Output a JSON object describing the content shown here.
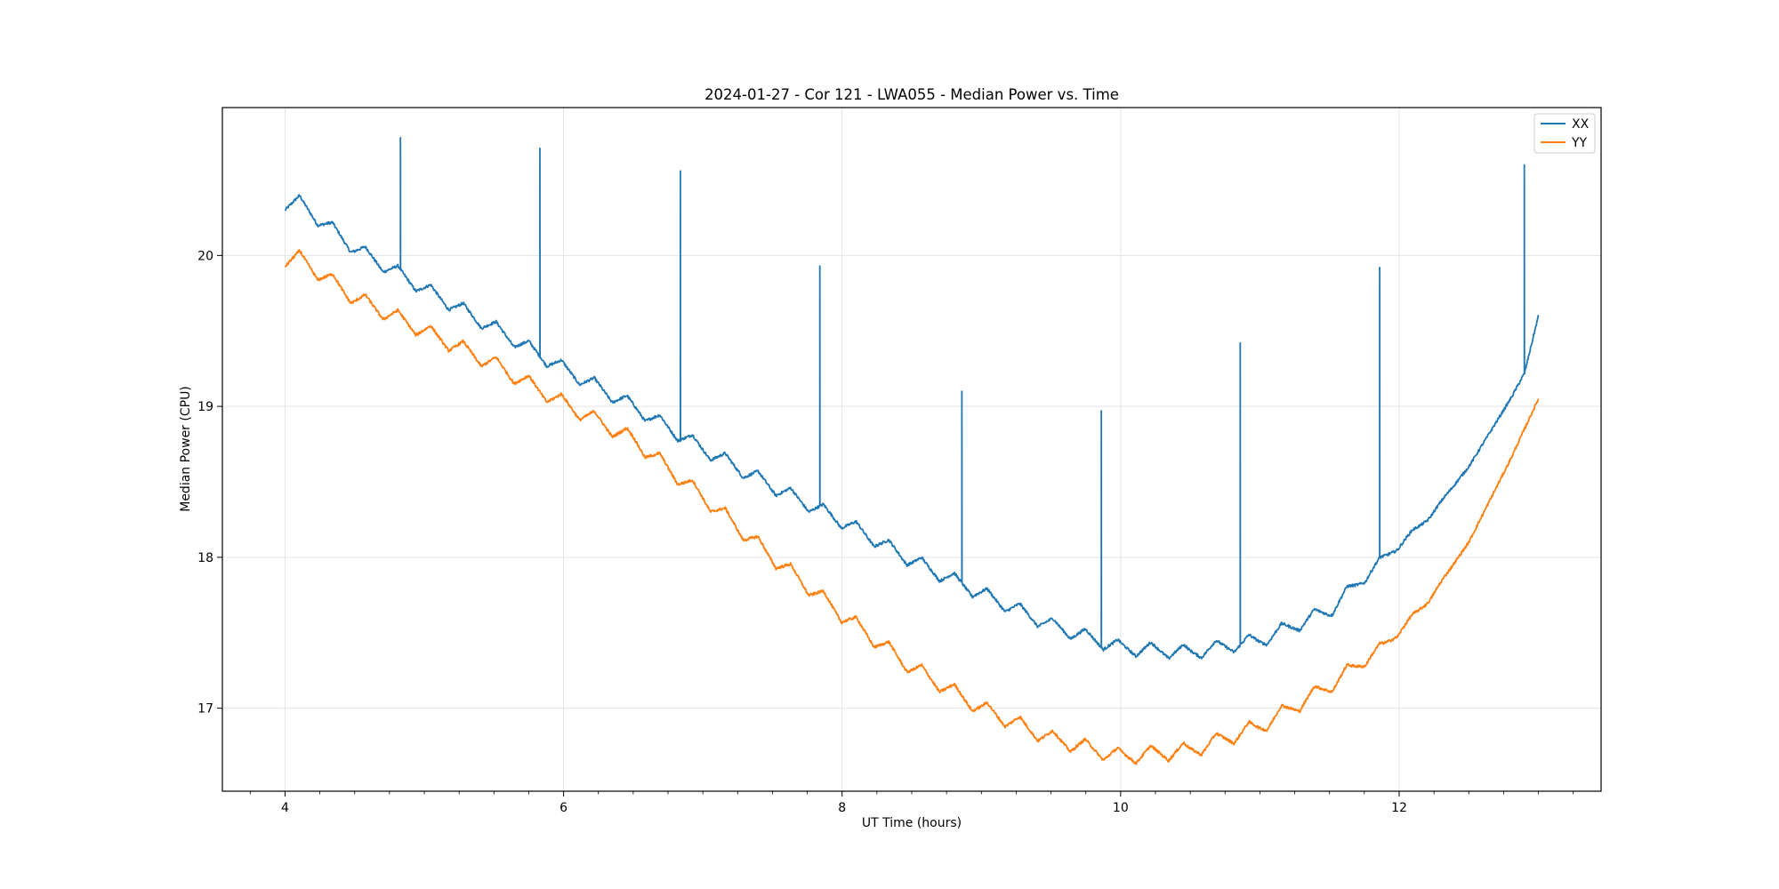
{
  "chart_data": {
    "type": "line",
    "title": "2024-01-27 - Cor 121 - LWA055 - Median Power vs. Time",
    "xlabel": "UT Time (hours)",
    "ylabel": "Median Power (CPU)",
    "xlim": [
      3.55,
      13.45
    ],
    "ylim": [
      16.45,
      20.98
    ],
    "xticks": [
      4,
      6,
      8,
      10,
      12
    ],
    "yticks": [
      17,
      18,
      19,
      20
    ],
    "grid": true,
    "legend_position": "top-right",
    "series": [
      {
        "name": "XX",
        "color": "#1f77b4",
        "baseline": [
          [
            4.0,
            20.35
          ],
          [
            4.1,
            20.35
          ],
          [
            4.5,
            20.05
          ],
          [
            5.0,
            19.78
          ],
          [
            5.5,
            19.52
          ],
          [
            6.0,
            19.25
          ],
          [
            6.5,
            19.0
          ],
          [
            7.0,
            18.72
          ],
          [
            7.5,
            18.47
          ],
          [
            8.0,
            18.24
          ],
          [
            8.5,
            17.98
          ],
          [
            9.0,
            17.76
          ],
          [
            9.5,
            17.55
          ],
          [
            10.0,
            17.4
          ],
          [
            10.5,
            17.37
          ],
          [
            11.0,
            17.45
          ],
          [
            11.5,
            17.65
          ],
          [
            11.9,
            18.0
          ],
          [
            12.2,
            18.25
          ],
          [
            12.5,
            18.6
          ],
          [
            12.8,
            19.05
          ],
          [
            12.9,
            19.22
          ],
          [
            13.0,
            19.6
          ]
        ],
        "oscillation_amplitude": 0.05,
        "oscillation_period_hours": 0.235,
        "spikes": [
          [
            4.83,
            20.78
          ],
          [
            5.83,
            20.71
          ],
          [
            6.84,
            20.56
          ],
          [
            7.84,
            19.93
          ],
          [
            8.86,
            19.1
          ],
          [
            9.86,
            18.97
          ],
          [
            10.86,
            19.42
          ],
          [
            11.86,
            19.92
          ],
          [
            12.9,
            20.6
          ]
        ]
      },
      {
        "name": "YY",
        "color": "#ff7f0e",
        "baseline": [
          [
            4.0,
            19.98
          ],
          [
            4.1,
            19.98
          ],
          [
            4.5,
            19.72
          ],
          [
            5.0,
            19.5
          ],
          [
            5.5,
            19.28
          ],
          [
            6.0,
            19.02
          ],
          [
            6.5,
            18.78
          ],
          [
            7.0,
            18.4
          ],
          [
            7.5,
            18.0
          ],
          [
            8.0,
            17.62
          ],
          [
            8.5,
            17.27
          ],
          [
            9.0,
            17.0
          ],
          [
            9.5,
            16.8
          ],
          [
            10.0,
            16.68
          ],
          [
            10.5,
            16.72
          ],
          [
            11.0,
            16.88
          ],
          [
            11.5,
            17.15
          ],
          [
            11.9,
            17.42
          ],
          [
            12.2,
            17.7
          ],
          [
            12.5,
            18.1
          ],
          [
            12.8,
            18.65
          ],
          [
            13.0,
            19.05
          ]
        ],
        "oscillation_amplitude": 0.055,
        "oscillation_period_hours": 0.235,
        "spikes": []
      }
    ]
  }
}
